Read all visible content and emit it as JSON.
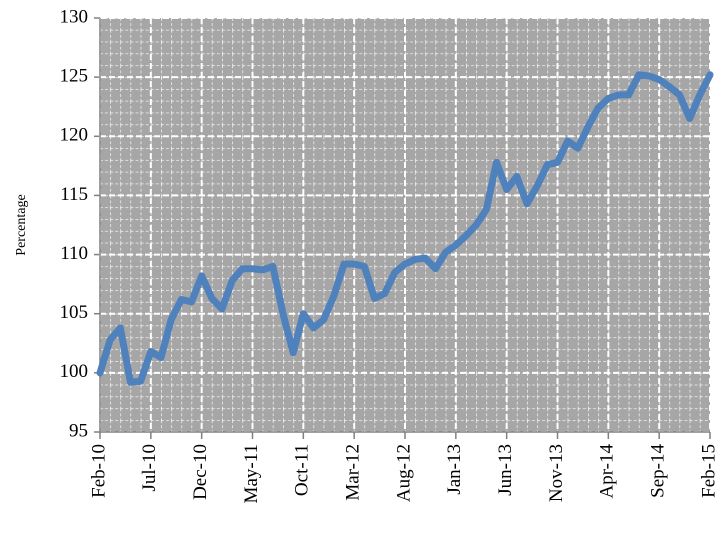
{
  "chart_data": {
    "type": "line",
    "y_label": "Percentage",
    "categories": [
      "Feb-10",
      null,
      null,
      null,
      null,
      "Jul-10",
      null,
      null,
      null,
      null,
      "Dec-10",
      null,
      null,
      null,
      null,
      "May-11",
      null,
      null,
      null,
      null,
      "Oct-11",
      null,
      null,
      null,
      null,
      "Mar-12",
      null,
      null,
      null,
      null,
      "Aug-12",
      null,
      null,
      null,
      null,
      "Jan-13",
      null,
      null,
      null,
      null,
      "Jun-13",
      null,
      null,
      null,
      null,
      "Nov-13",
      null,
      null,
      null,
      null,
      "Apr-14",
      null,
      null,
      null,
      null,
      "Sep-14",
      null,
      null,
      null,
      null,
      "Feb-15"
    ],
    "values": [
      100,
      102.8,
      103.8,
      99.2,
      99.3,
      101.8,
      101.3,
      104.5,
      106.2,
      106,
      108.2,
      106.3,
      105.4,
      107.8,
      108.8,
      108.8,
      108.7,
      109,
      105,
      101.7,
      105,
      103.8,
      104.5,
      106.5,
      109.2,
      109.2,
      109,
      106.3,
      106.7,
      108.5,
      109.2,
      109.6,
      109.7,
      108.8,
      110.2,
      110.8,
      111.6,
      112.5,
      113.8,
      117.8,
      115.5,
      116.6,
      114.3,
      115.8,
      117.6,
      117.8,
      119.6,
      119,
      120.8,
      122.4,
      123.2,
      123.5,
      123.5,
      125.2,
      125.1,
      124.8,
      124.2,
      123.5,
      121.5,
      123.5,
      125.2
    ],
    "color": "#4f81bd",
    "ylim": [
      95,
      130
    ],
    "yticks": [
      95,
      100,
      105,
      110,
      115,
      120,
      125,
      130
    ],
    "grid": true
  }
}
